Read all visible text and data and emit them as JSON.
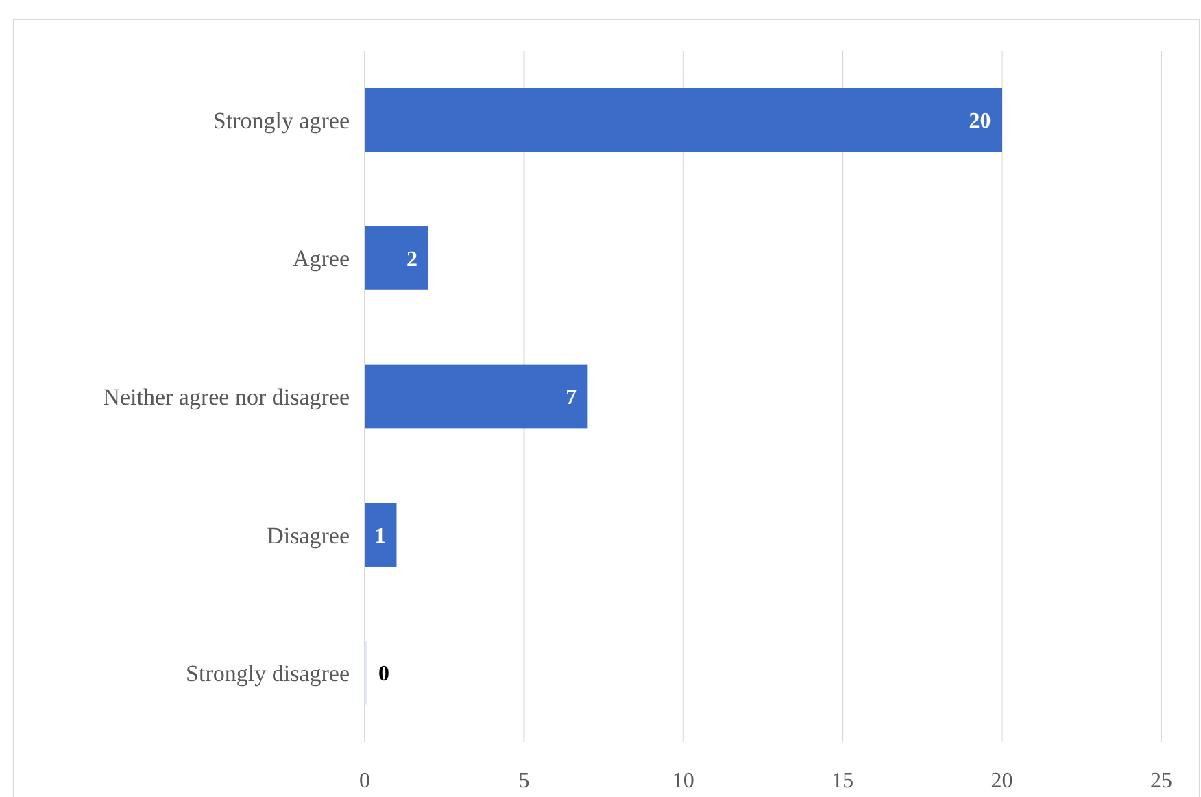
{
  "chart_data": {
    "type": "bar",
    "orientation": "horizontal",
    "categories": [
      "Strongly agree",
      "Agree",
      "Neither agree nor disagree",
      "Disagree",
      "Strongly disagree"
    ],
    "values": [
      20,
      2,
      7,
      1,
      0
    ],
    "color": "#3b6dc8",
    "xlim": [
      0,
      25
    ],
    "xticks": [
      0,
      5,
      10,
      15,
      20,
      25
    ],
    "grid": "x",
    "data_labels": true
  }
}
